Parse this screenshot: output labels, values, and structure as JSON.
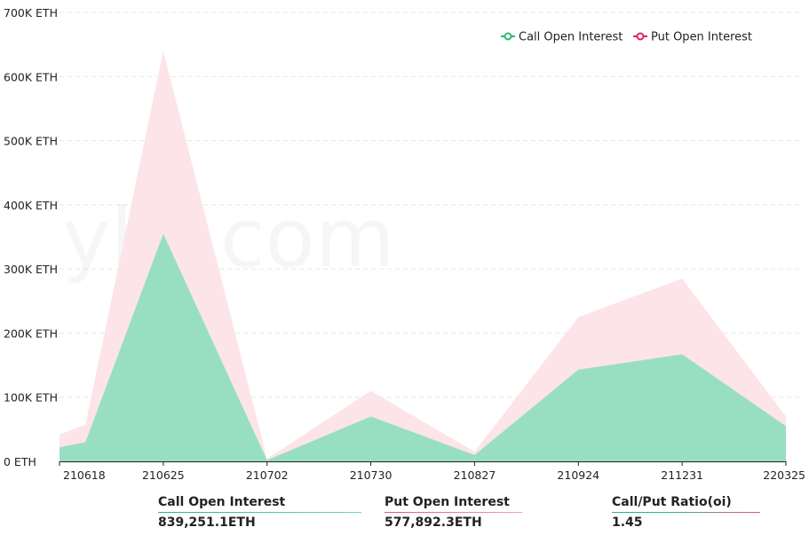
{
  "chart_data": {
    "type": "area",
    "stacked": true,
    "y_unit_suffix": "ETH",
    "y_ticks": [
      "700K ETH",
      "600K ETH",
      "500K ETH",
      "400K ETH",
      "300K ETH",
      "200K ETH",
      "100K ETH",
      "0 ETH"
    ],
    "ylim": [
      0,
      700000
    ],
    "x_tick_labels": [
      "210618",
      "210625",
      "210702",
      "210730",
      "210827",
      "210924",
      "211231",
      "220325"
    ],
    "x": [
      0,
      0.25,
      1,
      2,
      3,
      4,
      5,
      6,
      7
    ],
    "series": [
      {
        "name": "Call Open Interest",
        "color": "#2eb872",
        "fill": "#98dfc1",
        "values": [
          22000,
          30000,
          355000,
          2000,
          70000,
          10000,
          143000,
          167000,
          55000
        ]
      },
      {
        "name": "Put  Open Interest",
        "color": "#e0245e",
        "fill": "#fce4e8",
        "values": [
          20000,
          27000,
          285000,
          2000,
          40000,
          5000,
          82000,
          118000,
          15000
        ]
      }
    ],
    "legend_position": "top-right",
    "grid": true
  },
  "watermark": "yht.com",
  "summary": {
    "call": {
      "label": "Call Open Interest",
      "value": "839,251.1ETH"
    },
    "put": {
      "label": "Put Open Interest",
      "value": "577,892.3ETH"
    },
    "ratio": {
      "label": "Call/Put Ratio(oi)",
      "value": "1.45"
    }
  }
}
